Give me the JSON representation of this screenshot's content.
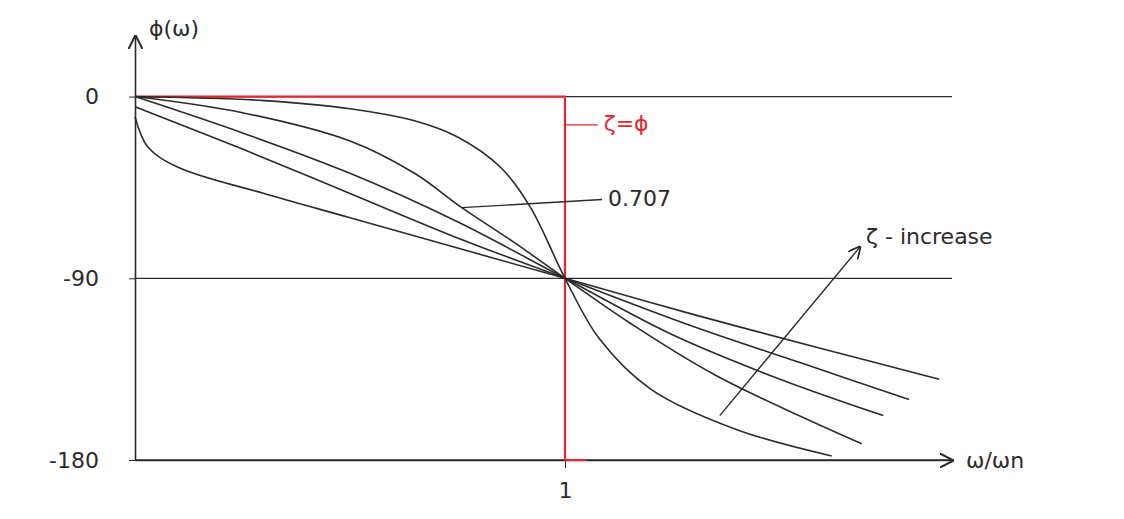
{
  "chart_data": {
    "type": "line",
    "x_label": "ω/ωn",
    "y_label": "ϕ(ω)",
    "xlim": [
      0,
      1.9
    ],
    "ylim": [
      -180,
      30
    ],
    "xticks": [
      1
    ],
    "yticks": [
      -180,
      -90,
      0
    ],
    "grid": true,
    "series": [
      {
        "color": "#e8262b",
        "type": "step",
        "line_style": "solid",
        "x": [
          0,
          1,
          1.05
        ],
        "values": [
          0,
          -180,
          -180
        ]
      },
      {
        "color": "#2b2b2b",
        "type": "line",
        "line_style": "solid",
        "x": [
          0,
          0.3,
          0.5,
          0.65,
          0.75,
          0.85,
          0.92,
          1,
          1.08,
          1.2,
          1.4,
          1.62
        ],
        "values": [
          0,
          -2,
          -6,
          -12,
          -20,
          -35,
          -55,
          -90,
          -120,
          -145,
          -165,
          -178
        ]
      },
      {
        "color": "#2b2b2b",
        "type": "line",
        "line_style": "solid",
        "x": [
          0,
          0.25,
          0.5,
          0.65,
          0.76,
          0.88,
          1,
          1.15,
          1.35,
          1.69
        ],
        "values": [
          0,
          -8,
          -22,
          -38,
          -55,
          -72,
          -90,
          -112,
          -138,
          -172
        ]
      },
      {
        "color": "#2b2b2b",
        "type": "line",
        "line_style": "solid",
        "x": [
          0,
          0.25,
          0.5,
          0.75,
          1,
          1.25,
          1.5,
          1.74
        ],
        "values": [
          0,
          -18,
          -38,
          -62,
          -90,
          -118,
          -140,
          -158
        ]
      },
      {
        "color": "#2b2b2b",
        "type": "line",
        "line_style": "solid",
        "x": [
          0,
          0.25,
          0.5,
          0.75,
          1,
          1.3,
          1.55,
          1.8
        ],
        "values": [
          -5,
          -26,
          -48,
          -70,
          -90,
          -114,
          -132,
          -150
        ]
      },
      {
        "color": "#2b2b2b",
        "type": "line",
        "line_style": "solid",
        "x": [
          0,
          0.03,
          0.1,
          0.3,
          0.5,
          0.75,
          1,
          1.3,
          1.6,
          1.87
        ],
        "values": [
          -10,
          -25,
          -35,
          -48,
          -60,
          -75,
          -90,
          -108,
          -125,
          -140
        ]
      }
    ],
    "annotations": [
      {
        "text": "ζ=ϕ",
        "x": 1.09,
        "y": -14,
        "point": [
          1,
          -14
        ],
        "color": "#e8262b"
      },
      {
        "text": "0.707",
        "x": 1.1,
        "y": -51,
        "point": [
          0.76,
          -55
        ],
        "color": "#2b2b2b"
      },
      {
        "text": "ζ - increase",
        "x": 1.7,
        "y": -70,
        "point": [
          1.36,
          -158
        ],
        "color": "#2b2b2b"
      }
    ]
  }
}
